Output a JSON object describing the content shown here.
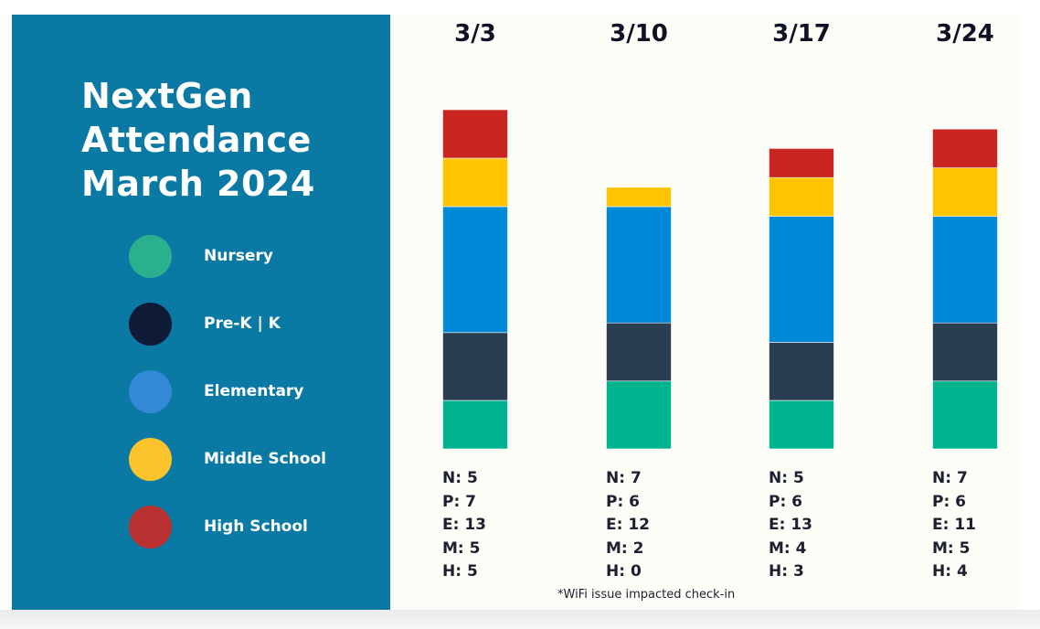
{
  "title_lines": [
    "NextGen",
    "Attendance",
    "March 2024"
  ],
  "legend": [
    {
      "label": "Nursery",
      "color": "#2bb08f"
    },
    {
      "label": "Pre-K | K",
      "color": "#0f1b36"
    },
    {
      "label": "Elementary",
      "color": "#3389d6"
    },
    {
      "label": "Middle School",
      "color": "#fbc32c"
    },
    {
      "label": "High School",
      "color": "#b83030"
    }
  ],
  "footnote": "*WiFi issue  impacted check-in",
  "chart_data": {
    "type": "bar",
    "stacked": true,
    "title": "",
    "categories": [
      "3/3",
      "3/10",
      "3/17",
      "3/24"
    ],
    "series": [
      {
        "name": "Nursery",
        "color": "#00b38f",
        "values": [
          5,
          7,
          5,
          7
        ]
      },
      {
        "name": "Pre-K | K",
        "color": "#2a3e52",
        "values": [
          7,
          6,
          6,
          6
        ]
      },
      {
        "name": "Elementary",
        "color": "#0089d6",
        "values": [
          13,
          12,
          13,
          11
        ]
      },
      {
        "name": "Middle School",
        "color": "#ffc400",
        "values": [
          5,
          2,
          4,
          5
        ]
      },
      {
        "name": "High School",
        "color": "#c92622",
        "values": [
          5,
          0,
          3,
          4
        ]
      }
    ],
    "stat_lines": [
      [
        "N: 5",
        "P: 7",
        "E: 13",
        "M: 5",
        "H: 5"
      ],
      [
        "N: 7",
        "P: 6",
        "E: 12",
        "M: 2",
        "H: 0"
      ],
      [
        "N: 5",
        "P: 6",
        "E: 13",
        "M: 4",
        "H: 3"
      ],
      [
        "N: 7",
        "P: 6",
        "E: 11",
        "M: 5",
        "H: 4"
      ]
    ]
  }
}
